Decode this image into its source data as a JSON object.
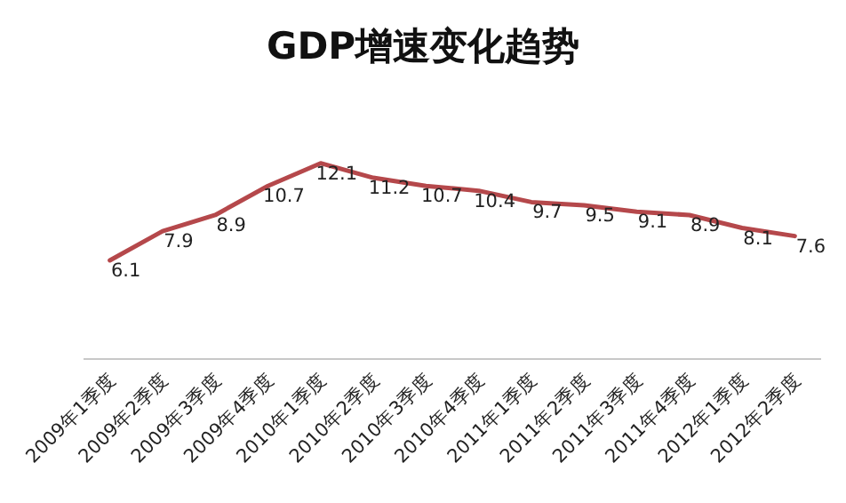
{
  "chart_data": {
    "type": "line",
    "title": "GDP增速变化趋势",
    "categories": [
      "2009年1季度",
      "2009年2季度",
      "2009年3季度",
      "2009年4季度",
      "2010年1季度",
      "2010年2季度",
      "2010年3季度",
      "2010年4季度",
      "2011年1季度",
      "2011年2季度",
      "2011年3季度",
      "2011年4季度",
      "2012年1季度",
      "2012年2季度"
    ],
    "series": [
      {
        "color": "#b5484b",
        "values": [
          6.1,
          7.9,
          8.9,
          10.7,
          12.1,
          11.2,
          10.7,
          10.4,
          9.7,
          9.5,
          9.1,
          8.9,
          8.1,
          7.6
        ]
      }
    ],
    "data_labels": true,
    "marker": "none",
    "line_style": "solid"
  }
}
